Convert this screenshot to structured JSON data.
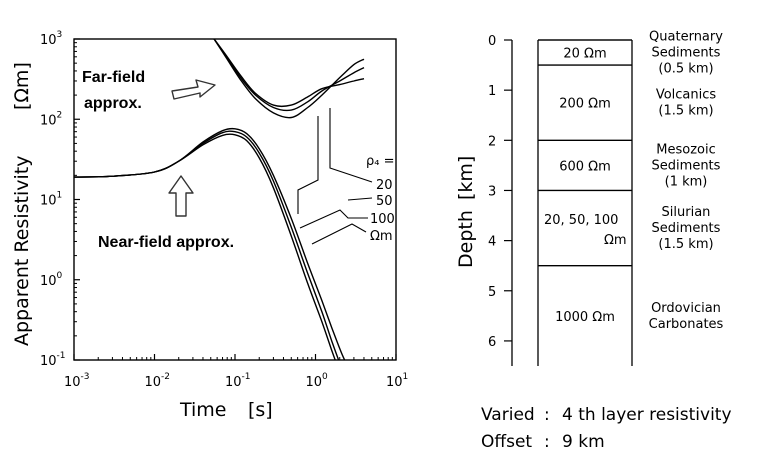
{
  "chart_data": [
    {
      "type": "line",
      "xlabel": "Time",
      "xunit": "[s]",
      "ylabel": "Apparent Resistivity",
      "yunit": "[Ωm]",
      "xscale": "log",
      "yscale": "log",
      "xlim": [
        0.001,
        10
      ],
      "ylim": [
        0.1,
        1000
      ],
      "x_ticks": [
        {
          "base": "10",
          "exp": "-3"
        },
        {
          "base": "10",
          "exp": "-2"
        },
        {
          "base": "10",
          "exp": "-1"
        },
        {
          "base": "10",
          "exp": "0"
        },
        {
          "base": "10",
          "exp": "1"
        }
      ],
      "y_ticks": [
        {
          "base": "10",
          "exp": "-1"
        },
        {
          "base": "10",
          "exp": "0"
        },
        {
          "base": "10",
          "exp": "1"
        },
        {
          "base": "10",
          "exp": "2"
        },
        {
          "base": "10",
          "exp": "3"
        }
      ],
      "legend_symbol": "ρ₄ =",
      "legend_values": [
        "20",
        "50",
        "100"
      ],
      "legend_unit": "Ωm",
      "series": [
        {
          "name": "20",
          "full": [
            [
              0.001,
              19
            ],
            [
              0.003,
              19.5
            ],
            [
              0.01,
              22
            ],
            [
              0.02,
              30
            ],
            [
              0.04,
              48
            ],
            [
              0.07,
              63
            ],
            [
              0.1,
              64
            ],
            [
              0.14,
              54
            ],
            [
              0.2,
              33
            ],
            [
              0.3,
              14
            ],
            [
              0.5,
              3.5
            ],
            [
              0.8,
              0.9
            ],
            [
              1.2,
              0.3
            ],
            [
              1.6,
              0.13
            ],
            [
              2.0,
              0.07
            ]
          ],
          "far": [
            [
              0.055,
              1000
            ],
            [
              0.08,
              560
            ],
            [
              0.12,
              300
            ],
            [
              0.18,
              180
            ],
            [
              0.3,
              120
            ],
            [
              0.5,
              105
            ],
            [
              0.8,
              140
            ],
            [
              1.2,
              200
            ],
            [
              2,
              330
            ],
            [
              3,
              480
            ],
            [
              4,
              560
            ]
          ]
        },
        {
          "name": "50",
          "full": [
            [
              0.001,
              19
            ],
            [
              0.003,
              19.5
            ],
            [
              0.01,
              22
            ],
            [
              0.02,
              30
            ],
            [
              0.04,
              50
            ],
            [
              0.07,
              68
            ],
            [
              0.1,
              70
            ],
            [
              0.14,
              60
            ],
            [
              0.2,
              38
            ],
            [
              0.3,
              17
            ],
            [
              0.5,
              4.5
            ],
            [
              0.8,
              1.2
            ],
            [
              1.2,
              0.4
            ],
            [
              1.6,
              0.17
            ],
            [
              2.2,
              0.07
            ]
          ],
          "far": [
            [
              0.055,
              1000
            ],
            [
              0.08,
              580
            ],
            [
              0.12,
              320
            ],
            [
              0.18,
              200
            ],
            [
              0.3,
              140
            ],
            [
              0.5,
              130
            ],
            [
              0.8,
              165
            ],
            [
              1.2,
              225
            ],
            [
              2,
              300
            ],
            [
              3,
              380
            ],
            [
              4,
              440
            ]
          ]
        },
        {
          "name": "100",
          "full": [
            [
              0.001,
              19
            ],
            [
              0.003,
              19.5
            ],
            [
              0.01,
              22
            ],
            [
              0.02,
              30
            ],
            [
              0.04,
              52
            ],
            [
              0.07,
              72
            ],
            [
              0.1,
              76
            ],
            [
              0.14,
              66
            ],
            [
              0.2,
              43
            ],
            [
              0.3,
              20
            ],
            [
              0.5,
              5.8
            ],
            [
              0.8,
              1.6
            ],
            [
              1.2,
              0.55
            ],
            [
              1.6,
              0.25
            ],
            [
              2.2,
              0.11
            ],
            [
              2.8,
              0.07
            ]
          ],
          "far": [
            [
              0.055,
              1000
            ],
            [
              0.08,
              600
            ],
            [
              0.12,
              340
            ],
            [
              0.18,
              210
            ],
            [
              0.3,
              150
            ],
            [
              0.5,
              150
            ],
            [
              0.8,
              190
            ],
            [
              1.2,
              240
            ],
            [
              2,
              270
            ],
            [
              3,
              300
            ],
            [
              4,
              320
            ]
          ]
        }
      ],
      "annotations": [
        "Far-field approx.",
        "Near-field approx."
      ]
    },
    {
      "type": "table",
      "ylabel": "Depth",
      "yunit": "[km]",
      "ylim": [
        0,
        6.5
      ],
      "y_ticks": [
        "0",
        "1",
        "2",
        "3",
        "4",
        "5",
        "6"
      ],
      "layers": [
        {
          "top": 0,
          "bottom": 0.5,
          "resistivity": "20",
          "unit": "Ωm",
          "name": "Quaternary Sediments",
          "name_lines": [
            "Quaternary",
            "Sediments",
            "(0.5 km)"
          ]
        },
        {
          "top": 0.5,
          "bottom": 2.0,
          "resistivity": "200",
          "unit": "Ωm",
          "name": "Volcanics",
          "name_lines": [
            "Volcanics",
            "(1.5 km)"
          ]
        },
        {
          "top": 2.0,
          "bottom": 3.0,
          "resistivity": "600",
          "unit": "Ωm",
          "name": "Mesozoic Sediments",
          "name_lines": [
            "Mesozoic",
            "Sediments",
            "(1 km)"
          ]
        },
        {
          "top": 3.0,
          "bottom": 4.5,
          "resistivity": "20, 50, 100",
          "unit": "Ωm",
          "name": "Silurian Sediments",
          "name_lines": [
            "Silurian",
            "Sediments",
            "(1.5 km)"
          ]
        },
        {
          "top": 4.5,
          "bottom": 6.5,
          "resistivity": "1000",
          "unit": "Ωm",
          "name": "Ordovician Carbonates",
          "name_lines": [
            "Ordovician",
            "Carbonates"
          ]
        }
      ]
    }
  ],
  "labels": {
    "far_field_line1": "Far-field",
    "far_field_line2": "approx.",
    "near_field": "Near-field approx."
  },
  "footer": {
    "varied_key": "Varied",
    "varied_value": "4 th layer resistivity",
    "offset_key": "Offset",
    "offset_value": "9 km"
  }
}
